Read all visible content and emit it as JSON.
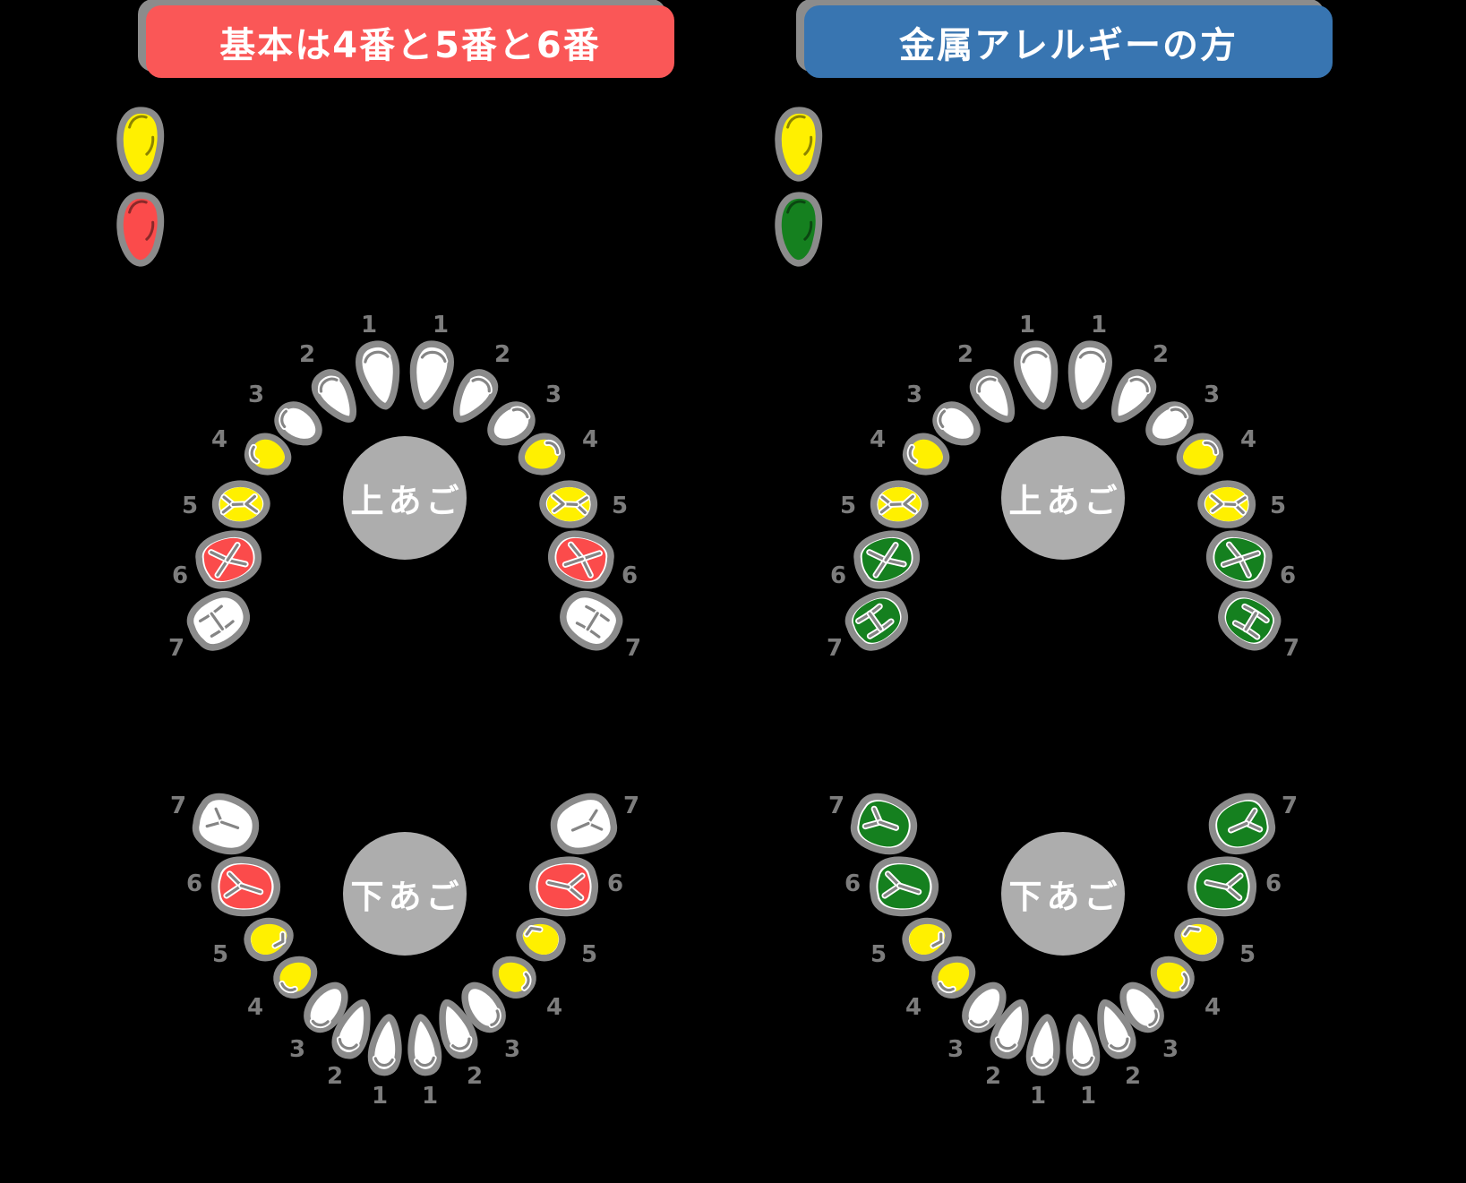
{
  "background": "#000000",
  "palette": {
    "tooth_outline": "#8B8B8B",
    "tooth_white": "#FFFFFF",
    "yellow": "#FFF000",
    "red": "#FB4B4B",
    "green": "#15801F",
    "fissure_gray": "#858585",
    "jaw_circle": "#ADADAD",
    "jaw_label_text": "#FFFFFF",
    "number_gray": "#7D7D7D",
    "header_text": "#FFFFFF",
    "header_shadow": "#8C8C8C"
  },
  "columns": [
    {
      "header": {
        "label": "基本は4番と5番と6番",
        "bg": "#FA5757"
      },
      "legend": [
        {
          "name": "yellow-tooth",
          "color": "yellow"
        },
        {
          "name": "red-tooth",
          "color": "red"
        }
      ],
      "jaws": [
        {
          "label": "上あご",
          "position": "upper",
          "teeth": [
            {
              "num": "1",
              "color": "white"
            },
            {
              "num": "2",
              "color": "white"
            },
            {
              "num": "3",
              "color": "white"
            },
            {
              "num": "4",
              "color": "yellow"
            },
            {
              "num": "5",
              "color": "yellow"
            },
            {
              "num": "6",
              "color": "red"
            },
            {
              "num": "7",
              "color": "white"
            }
          ]
        },
        {
          "label": "下あご",
          "position": "lower",
          "teeth": [
            {
              "num": "1",
              "color": "white"
            },
            {
              "num": "2",
              "color": "white"
            },
            {
              "num": "3",
              "color": "white"
            },
            {
              "num": "4",
              "color": "yellow"
            },
            {
              "num": "5",
              "color": "yellow"
            },
            {
              "num": "6",
              "color": "red"
            },
            {
              "num": "7",
              "color": "white"
            }
          ]
        }
      ]
    },
    {
      "header": {
        "label": "金属アレルギーの方",
        "bg": "#3875B1"
      },
      "legend": [
        {
          "name": "yellow-tooth",
          "color": "yellow"
        },
        {
          "name": "green-tooth",
          "color": "green"
        }
      ],
      "jaws": [
        {
          "label": "上あご",
          "position": "upper",
          "teeth": [
            {
              "num": "1",
              "color": "white"
            },
            {
              "num": "2",
              "color": "white"
            },
            {
              "num": "3",
              "color": "white"
            },
            {
              "num": "4",
              "color": "yellow"
            },
            {
              "num": "5",
              "color": "yellow"
            },
            {
              "num": "6",
              "color": "green"
            },
            {
              "num": "7",
              "color": "green"
            }
          ]
        },
        {
          "label": "下あご",
          "position": "lower",
          "teeth": [
            {
              "num": "1",
              "color": "white"
            },
            {
              "num": "2",
              "color": "white"
            },
            {
              "num": "3",
              "color": "white"
            },
            {
              "num": "4",
              "color": "yellow"
            },
            {
              "num": "5",
              "color": "yellow"
            },
            {
              "num": "6",
              "color": "green"
            },
            {
              "num": "7",
              "color": "green"
            }
          ]
        }
      ]
    }
  ]
}
